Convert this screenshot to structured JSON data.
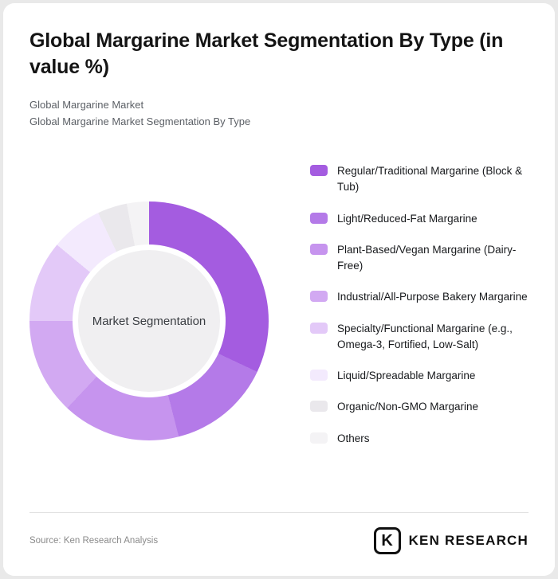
{
  "page": {
    "title": "Global Margarine Market Segmentation By Type (in value %)",
    "subtitle_line1": "Global Margarine Market",
    "subtitle_line2": "Global Margarine Market Segmentation By Type"
  },
  "chart_data": {
    "type": "pie",
    "variant": "donut",
    "center_label": "Market Segmentation",
    "legend_position": "right",
    "segments": [
      {
        "label": "Regular/Traditional Margarine (Block & Tub)",
        "value": 32,
        "color": "#a45ce0"
      },
      {
        "label": "Light/Reduced-Fat Margarine",
        "value": 14,
        "color": "#b47ae8"
      },
      {
        "label": "Plant-Based/Vegan Margarine (Dairy-Free)",
        "value": 16,
        "color": "#c694ee"
      },
      {
        "label": "Industrial/All-Purpose Bakery Margarine",
        "value": 13,
        "color": "#d2a9f2"
      },
      {
        "label": "Specialty/Functional Margarine (e.g., Omega-3, Fortified, Low-Salt)",
        "value": 11,
        "color": "#e3c9f8"
      },
      {
        "label": "Liquid/Spreadable Margarine",
        "value": 7,
        "color": "#f3eafd"
      },
      {
        "label": "Organic/Non-GMO Margarine",
        "value": 4,
        "color": "#eae8ec"
      },
      {
        "label": "Others",
        "value": 3,
        "color": "#f4f3f5"
      }
    ]
  },
  "colors": {
    "center_circle": "#f0eff1",
    "accent": "#a45ce0"
  },
  "footer": {
    "source": "Source: Ken Research Analysis",
    "logo_k": "K",
    "logo_text": "KEN RESEARCH"
  }
}
